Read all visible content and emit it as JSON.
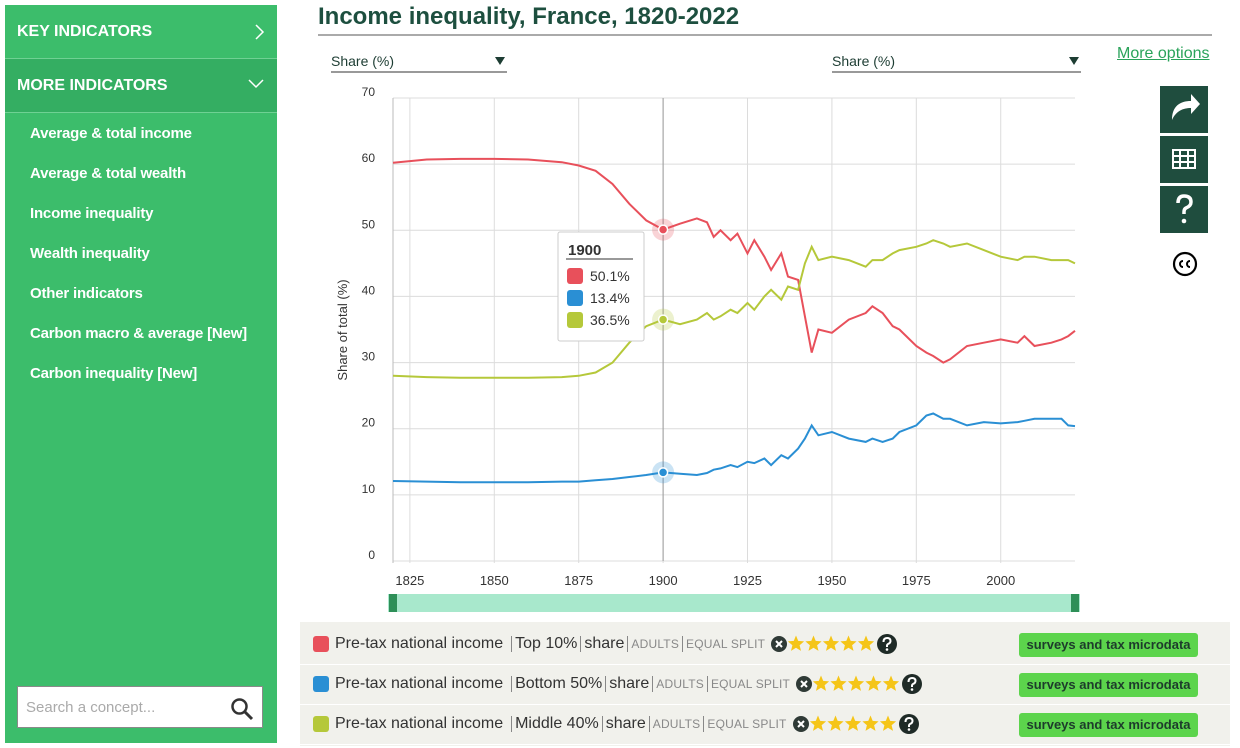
{
  "sidebar": {
    "sections": [
      "KEY INDICATORS",
      "MORE INDICATORS"
    ],
    "items": [
      "Average & total income",
      "Average & total wealth",
      "Income inequality",
      "Wealth inequality",
      "Other indicators",
      "Carbon macro & average [New]",
      "Carbon inequality [New]"
    ],
    "search_placeholder": "Search a concept..."
  },
  "header": {
    "left_selector": "Share (%)",
    "right_selector": "Share (%)",
    "more_options": "More options"
  },
  "chart_data": {
    "type": "line",
    "title": "Income inequality, France, 1820-2022",
    "y_label": "Share of total (%)",
    "x": [
      1820,
      1830,
      1840,
      1850,
      1860,
      1870,
      1875,
      1880,
      1885,
      1890,
      1895,
      1900,
      1905,
      1910,
      1913,
      1915,
      1917,
      1920,
      1922,
      1925,
      1927,
      1930,
      1932,
      1935,
      1937,
      1940,
      1942,
      1944,
      1946,
      1950,
      1955,
      1960,
      1962,
      1965,
      1968,
      1970,
      1975,
      1978,
      1980,
      1983,
      1985,
      1990,
      1995,
      2000,
      2005,
      2007,
      2010,
      2015,
      2018,
      2020,
      2022
    ],
    "xlim": [
      1820,
      2022
    ],
    "xticks": [
      1825,
      1850,
      1875,
      1900,
      1925,
      1950,
      1975,
      2000
    ],
    "ylim": [
      0,
      70
    ],
    "yticks": [
      0,
      10,
      20,
      30,
      40,
      50,
      60,
      70
    ],
    "grid": true,
    "series": [
      {
        "name": "Top 10%",
        "color": "#e8505b",
        "values": [
          60.2,
          60.7,
          60.8,
          60.8,
          60.7,
          60.3,
          59.8,
          59.0,
          57.0,
          54.0,
          51.5,
          50.1,
          51.0,
          51.8,
          51.2,
          49.0,
          50.0,
          48.5,
          49.5,
          46.5,
          48.5,
          46.0,
          44.0,
          46.5,
          43.0,
          42.5,
          37.0,
          31.5,
          35.0,
          34.5,
          36.5,
          37.5,
          38.5,
          37.5,
          35.5,
          35.0,
          32.5,
          31.5,
          31.0,
          30.0,
          30.5,
          32.5,
          33.0,
          33.5,
          33.0,
          34.0,
          32.5,
          33.0,
          33.5,
          34.0,
          34.8
        ]
      },
      {
        "name": "Bottom 50%",
        "color": "#2a8fd4",
        "values": [
          12.1,
          12.0,
          11.9,
          11.9,
          11.9,
          12.0,
          12.0,
          12.2,
          12.4,
          12.7,
          13.0,
          13.4,
          13.2,
          13.0,
          13.3,
          13.8,
          14.0,
          14.5,
          14.2,
          15.0,
          14.8,
          15.5,
          14.5,
          16.0,
          15.5,
          17.0,
          18.5,
          20.5,
          19.0,
          19.5,
          18.5,
          18.0,
          18.5,
          18.0,
          18.5,
          19.5,
          20.5,
          22.0,
          22.3,
          21.5,
          21.5,
          20.5,
          21.0,
          20.8,
          21.0,
          21.2,
          21.5,
          21.5,
          21.5,
          20.5,
          20.4
        ]
      },
      {
        "name": "Middle 40%",
        "color": "#b5c83a",
        "values": [
          28.0,
          27.8,
          27.7,
          27.7,
          27.7,
          27.8,
          28.0,
          28.5,
          30.0,
          33.0,
          35.5,
          36.5,
          35.8,
          36.5,
          37.5,
          36.5,
          37.0,
          38.0,
          37.5,
          39.0,
          38.0,
          40.0,
          41.0,
          39.5,
          41.5,
          41.0,
          45.0,
          47.5,
          45.5,
          46.0,
          45.5,
          44.5,
          45.5,
          45.5,
          46.5,
          47.0,
          47.5,
          48.0,
          48.5,
          48.0,
          47.5,
          48.0,
          47.0,
          46.0,
          45.5,
          46.0,
          46.0,
          45.5,
          45.5,
          45.5,
          45.0
        ]
      }
    ],
    "tooltip": {
      "title": "1900",
      "value_labels": [
        "50.1%",
        "13.4%",
        "36.5%"
      ]
    }
  },
  "legend_rows": [
    {
      "concept": "Pre-tax national income",
      "measure": "share",
      "population": "ADULTS",
      "split": "EQUAL SPLIT",
      "rating": 5,
      "source": "surveys and tax microdata"
    },
    {
      "concept": "Pre-tax national income",
      "measure": "share",
      "population": "ADULTS",
      "split": "EQUAL SPLIT",
      "rating": 5,
      "source": "surveys and tax microdata"
    },
    {
      "concept": "Pre-tax national income",
      "measure": "share",
      "population": "ADULTS",
      "split": "EQUAL SPLIT",
      "rating": 5,
      "source": "surveys and tax microdata"
    }
  ]
}
